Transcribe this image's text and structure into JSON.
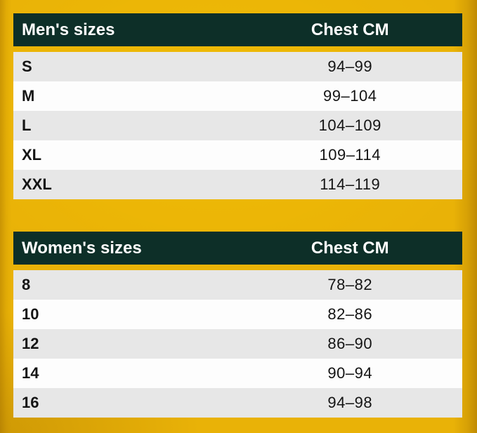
{
  "colors": {
    "header_bg": "#0d2f28",
    "header_text": "#ffffff",
    "row_gray": "#e7e7e7",
    "row_white": "#fdfdfd",
    "background_gold": "#e9b207",
    "body_text": "#141414"
  },
  "tables": [
    {
      "header": {
        "col1": "Men's sizes",
        "col2": "Chest CM"
      },
      "rows": [
        {
          "size": "S",
          "chest": "94–99"
        },
        {
          "size": "M",
          "chest": "99–104"
        },
        {
          "size": "L",
          "chest": "104–109"
        },
        {
          "size": "XL",
          "chest": "109–114"
        },
        {
          "size": "XXL",
          "chest": "114–119"
        }
      ]
    },
    {
      "header": {
        "col1": "Women's sizes",
        "col2": "Chest CM"
      },
      "rows": [
        {
          "size": "8",
          "chest": "78–82"
        },
        {
          "size": "10",
          "chest": "82–86"
        },
        {
          "size": "12",
          "chest": "86–90"
        },
        {
          "size": "14",
          "chest": "90–94"
        },
        {
          "size": "16",
          "chest": "94–98"
        }
      ]
    }
  ]
}
